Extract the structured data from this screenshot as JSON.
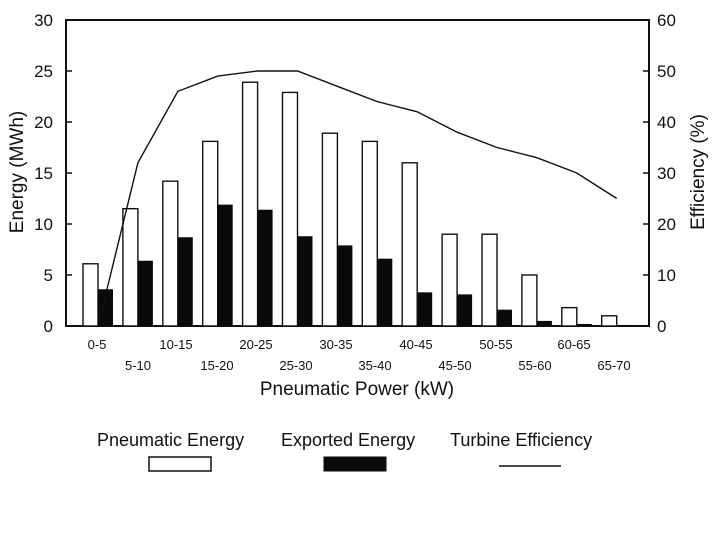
{
  "chart_data": {
    "type": "bar",
    "title": "",
    "categories": [
      "0-5",
      "5-10",
      "10-15",
      "15-20",
      "20-25",
      "25-30",
      "30-35",
      "35-40",
      "40-45",
      "45-50",
      "50-55",
      "55-60",
      "60-65",
      "65-70"
    ],
    "series": [
      {
        "name": "Pneumatic Energy",
        "axis": "left",
        "style": "white",
        "values": [
          6.1,
          11.5,
          14.2,
          18.1,
          23.9,
          22.9,
          18.9,
          18.1,
          16.0,
          9.0,
          9.0,
          5.0,
          1.8,
          1.0
        ]
      },
      {
        "name": "Exported Energy",
        "axis": "left",
        "style": "black",
        "values": [
          3.6,
          6.4,
          8.7,
          11.9,
          11.4,
          8.8,
          7.9,
          6.6,
          3.3,
          3.1,
          1.6,
          0.5,
          0.2,
          0.1
        ]
      },
      {
        "name": "Turbine Efficiency",
        "axis": "right",
        "style": "line",
        "values": [
          0,
          32,
          46,
          49,
          50,
          50,
          47,
          44,
          42,
          38,
          35,
          33,
          30,
          25
        ]
      }
    ],
    "xlabel": "Pneumatic Power (kW)",
    "ylabel": "Energy (MWh)",
    "y2label": "Efficiency (%)",
    "ylim": [
      0,
      30
    ],
    "y2lim": [
      0,
      60
    ],
    "yticks": [
      "0",
      "5",
      "10",
      "15",
      "20",
      "25",
      "30"
    ],
    "y2ticks": [
      "0",
      "10",
      "20",
      "30",
      "40",
      "50",
      "60"
    ],
    "legend": {
      "placement": "bottom",
      "items": [
        "Pneumatic Energy",
        "Exported Energy",
        "Turbine Efficiency"
      ]
    }
  }
}
